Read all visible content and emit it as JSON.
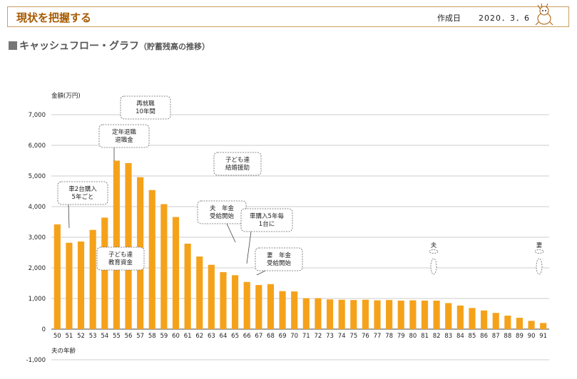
{
  "header": {
    "title": "現状を把握する",
    "date_label": "作成日",
    "date_value": "2020．3．6"
  },
  "subtitle": {
    "main": "キャッシュフロー・グラフ",
    "paren": "（貯蓄残高の推移）"
  },
  "chart_data": {
    "type": "bar",
    "ylabel": "金額(万円)",
    "xlabel": "夫の年齢",
    "ylim": [
      -1000,
      7000
    ],
    "yticks": [
      -1000,
      0,
      1000,
      2000,
      3000,
      4000,
      5000,
      6000,
      7000
    ],
    "ytick_labels": [
      "-1,000",
      "0",
      "1,000",
      "2,000",
      "3,000",
      "4,000",
      "5,000",
      "6,000",
      "7,000"
    ],
    "grid": true,
    "bar_color": "#f5a21b",
    "categories": [
      "50",
      "51",
      "52",
      "53",
      "54",
      "55",
      "56",
      "57",
      "58",
      "59",
      "60",
      "61",
      "62",
      "63",
      "64",
      "65",
      "66",
      "67",
      "68",
      "69",
      "70",
      "71",
      "72",
      "73",
      "74",
      "75",
      "76",
      "77",
      "78",
      "79",
      "80",
      "81",
      "82",
      "83",
      "84",
      "85",
      "86",
      "87",
      "88",
      "89",
      "90",
      "91"
    ],
    "values": [
      3420,
      2820,
      2860,
      3240,
      3640,
      5500,
      5420,
      4960,
      4540,
      4080,
      3660,
      2790,
      2370,
      2100,
      1860,
      1760,
      1540,
      1440,
      1470,
      1240,
      1230,
      1010,
      1010,
      970,
      960,
      950,
      960,
      940,
      950,
      930,
      940,
      930,
      930,
      850,
      770,
      690,
      610,
      530,
      440,
      370,
      270,
      200
    ],
    "annotations": [
      {
        "text": [
          "車2台購入",
          "5年ごと"
        ],
        "x": "51"
      },
      {
        "text": [
          "定年退職",
          "退職金"
        ],
        "x": "55"
      },
      {
        "text": [
          "再就職",
          "10年間"
        ],
        "x": "56"
      },
      {
        "text": [
          "子ども達",
          "教育資金"
        ],
        "x": "55"
      },
      {
        "text": [
          "子ども達",
          "結婚援助"
        ],
        "x": "63"
      },
      {
        "text": [
          "夫　年金",
          "受給開始"
        ],
        "x": "65"
      },
      {
        "text": [
          "車購入5年毎",
          "1台に"
        ],
        "x": "67"
      },
      {
        "text": [
          "妻　年金",
          "受給開始"
        ],
        "x": "67"
      },
      {
        "text": [
          "夫"
        ],
        "x": "82"
      },
      {
        "text": [
          "妻"
        ],
        "x": "91"
      }
    ]
  }
}
